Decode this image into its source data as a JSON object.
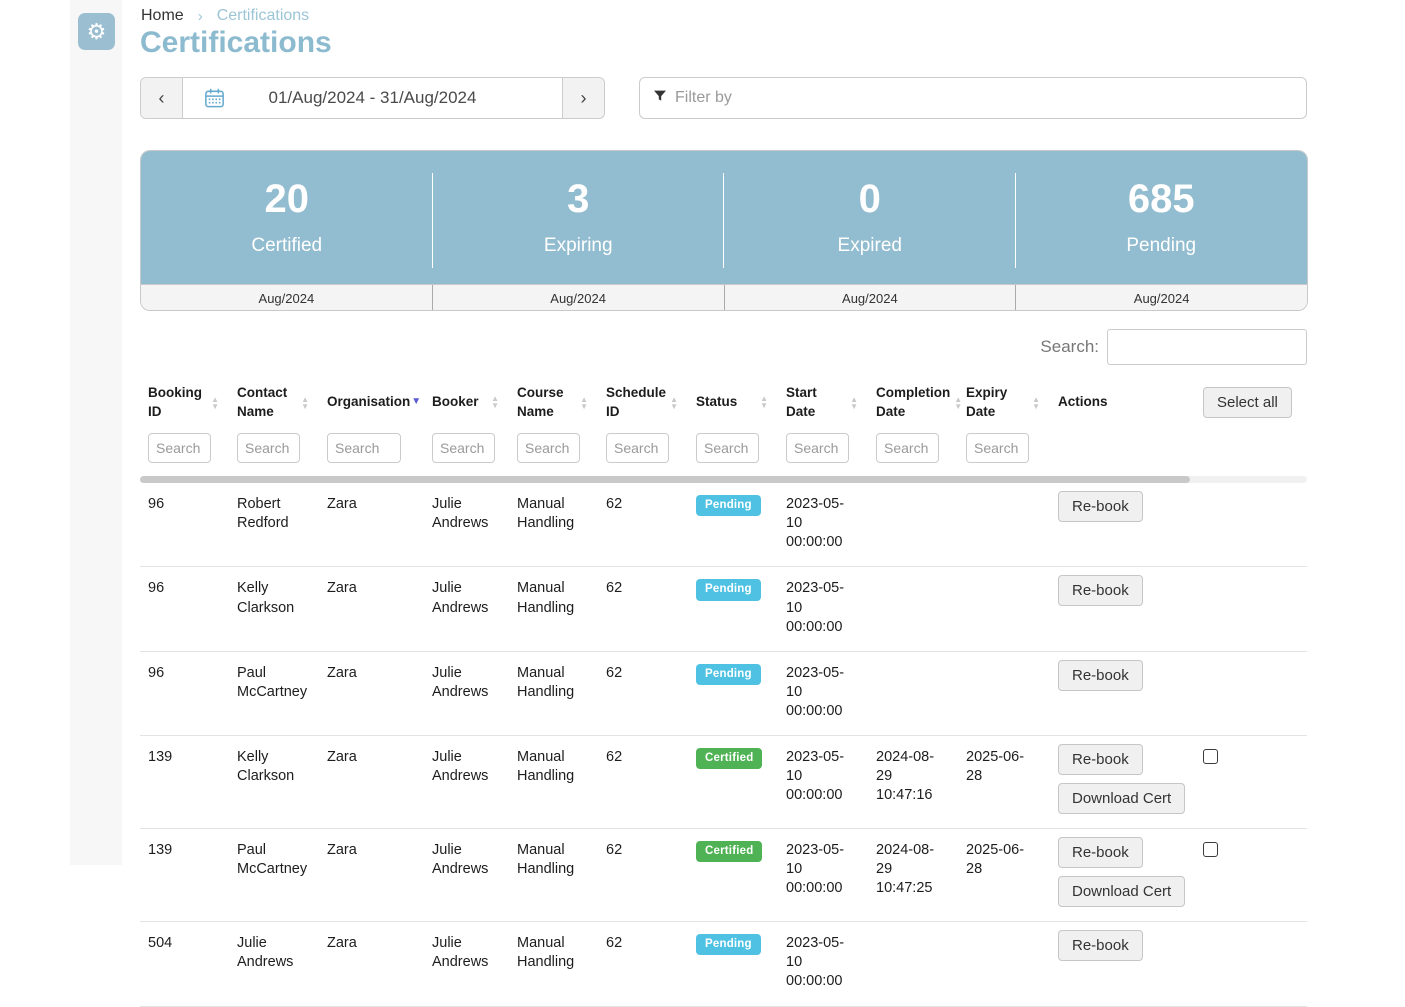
{
  "colors": {
    "accent_blue": "#92bccf",
    "title_blue": "#8cbacf",
    "breadcrumb_blue": "#9cc5d6",
    "badge": {
      "Pending": "#4fc2e4",
      "Certified": "#4fb254"
    }
  },
  "breadcrumb": {
    "home": "Home",
    "separator": "›",
    "current": "Certifications"
  },
  "page": {
    "title": "Certifications"
  },
  "date_nav": {
    "prev_label": "‹",
    "next_label": "›",
    "range": "01/Aug/2024 - 31/Aug/2024"
  },
  "filter": {
    "placeholder": "Filter by"
  },
  "stats": {
    "items": [
      {
        "value": "20",
        "label": "Certified",
        "period": "Aug/2024"
      },
      {
        "value": "3",
        "label": "Expiring",
        "period": "Aug/2024"
      },
      {
        "value": "0",
        "label": "Expired",
        "period": "Aug/2024"
      },
      {
        "value": "685",
        "label": "Pending",
        "period": "Aug/2024"
      }
    ]
  },
  "search": {
    "label": "Search:",
    "value": ""
  },
  "table": {
    "search_placeholder": "Search",
    "select_all_label": "Select all",
    "columns": [
      {
        "label": "Booking ID",
        "sort": "both",
        "searchable": true
      },
      {
        "label": "Contact Name",
        "sort": "both",
        "searchable": true
      },
      {
        "label": "Organisation",
        "sort": "desc",
        "searchable": true
      },
      {
        "label": "Booker",
        "sort": "both",
        "searchable": true
      },
      {
        "label": "Course Name",
        "sort": "both",
        "searchable": true
      },
      {
        "label": "Schedule ID",
        "sort": "both",
        "searchable": true
      },
      {
        "label": "Status",
        "sort": "both",
        "searchable": true
      },
      {
        "label": "Start Date",
        "sort": "both",
        "searchable": true
      },
      {
        "label": "Completion Date",
        "sort": "both",
        "searchable": true
      },
      {
        "label": "Expiry Date",
        "sort": "both",
        "searchable": true
      },
      {
        "label": "Actions",
        "sort": "none",
        "searchable": false
      }
    ],
    "rows": [
      {
        "booking_id": "96",
        "contact_name": "Robert Redford",
        "organisation": "Zara",
        "booker": "Julie Andrews",
        "course_name": "Manual Handling",
        "schedule_id": "62",
        "status": "Pending",
        "start_date": "2023-05-10 00:00:00",
        "completion_date": "",
        "expiry_date": "",
        "actions": [
          "Re-book"
        ],
        "checkbox": false
      },
      {
        "booking_id": "96",
        "contact_name": "Kelly Clarkson",
        "organisation": "Zara",
        "booker": "Julie Andrews",
        "course_name": "Manual Handling",
        "schedule_id": "62",
        "status": "Pending",
        "start_date": "2023-05-10 00:00:00",
        "completion_date": "",
        "expiry_date": "",
        "actions": [
          "Re-book"
        ],
        "checkbox": false
      },
      {
        "booking_id": "96",
        "contact_name": "Paul McCartney",
        "organisation": "Zara",
        "booker": "Julie Andrews",
        "course_name": "Manual Handling",
        "schedule_id": "62",
        "status": "Pending",
        "start_date": "2023-05-10 00:00:00",
        "completion_date": "",
        "expiry_date": "",
        "actions": [
          "Re-book"
        ],
        "checkbox": false
      },
      {
        "booking_id": "139",
        "contact_name": "Kelly Clarkson",
        "organisation": "Zara",
        "booker": "Julie Andrews",
        "course_name": "Manual Handling",
        "schedule_id": "62",
        "status": "Certified",
        "start_date": "2023-05-10 00:00:00",
        "completion_date": "2024-08-29 10:47:16",
        "expiry_date": "2025-06-28",
        "actions": [
          "Re-book",
          "Download Cert"
        ],
        "checkbox": true
      },
      {
        "booking_id": "139",
        "contact_name": "Paul McCartney",
        "organisation": "Zara",
        "booker": "Julie Andrews",
        "course_name": "Manual Handling",
        "schedule_id": "62",
        "status": "Certified",
        "start_date": "2023-05-10 00:00:00",
        "completion_date": "2024-08-29 10:47:25",
        "expiry_date": "2025-06-28",
        "actions": [
          "Re-book",
          "Download Cert"
        ],
        "checkbox": true
      },
      {
        "booking_id": "504",
        "contact_name": "Julie Andrews",
        "organisation": "Zara",
        "booker": "Julie Andrews",
        "course_name": "Manual Handling",
        "schedule_id": "62",
        "status": "Pending",
        "start_date": "2023-05-10 00:00:00",
        "completion_date": "",
        "expiry_date": "",
        "actions": [
          "Re-book"
        ],
        "checkbox": false
      }
    ]
  }
}
